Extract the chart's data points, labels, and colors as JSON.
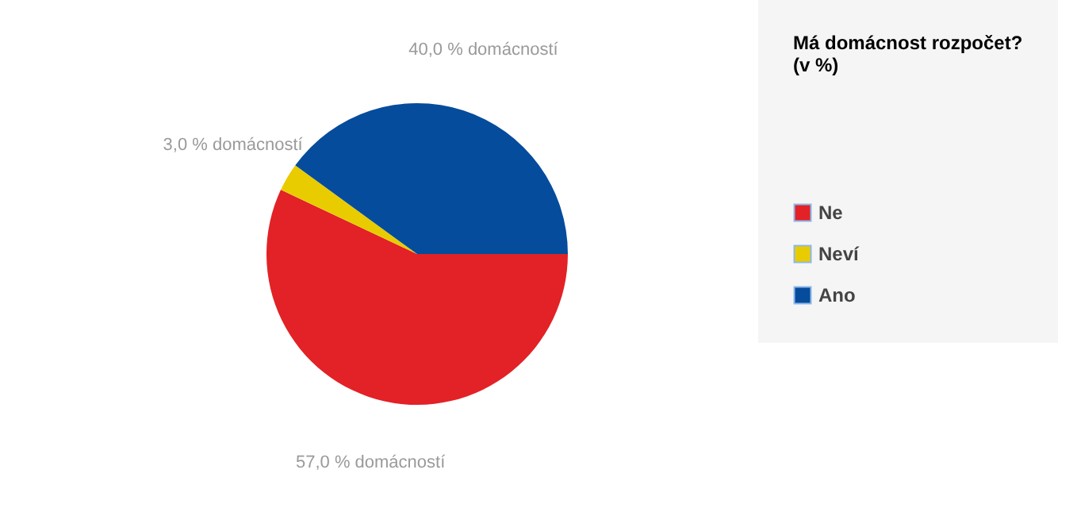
{
  "chart_data": {
    "type": "pie",
    "legend_title": "Má domácnost rozpočet?\n (v %)",
    "categories": [
      "Ne",
      "Neví",
      "Ano"
    ],
    "values": [
      57.0,
      3.0,
      40.0
    ],
    "colors": [
      "#e22226",
      "#e8cc00",
      "#054c9c"
    ],
    "value_labels": [
      "57,0 % domácností",
      "3,0 % domácností",
      "40,0 % domácností"
    ],
    "legend": "right"
  }
}
